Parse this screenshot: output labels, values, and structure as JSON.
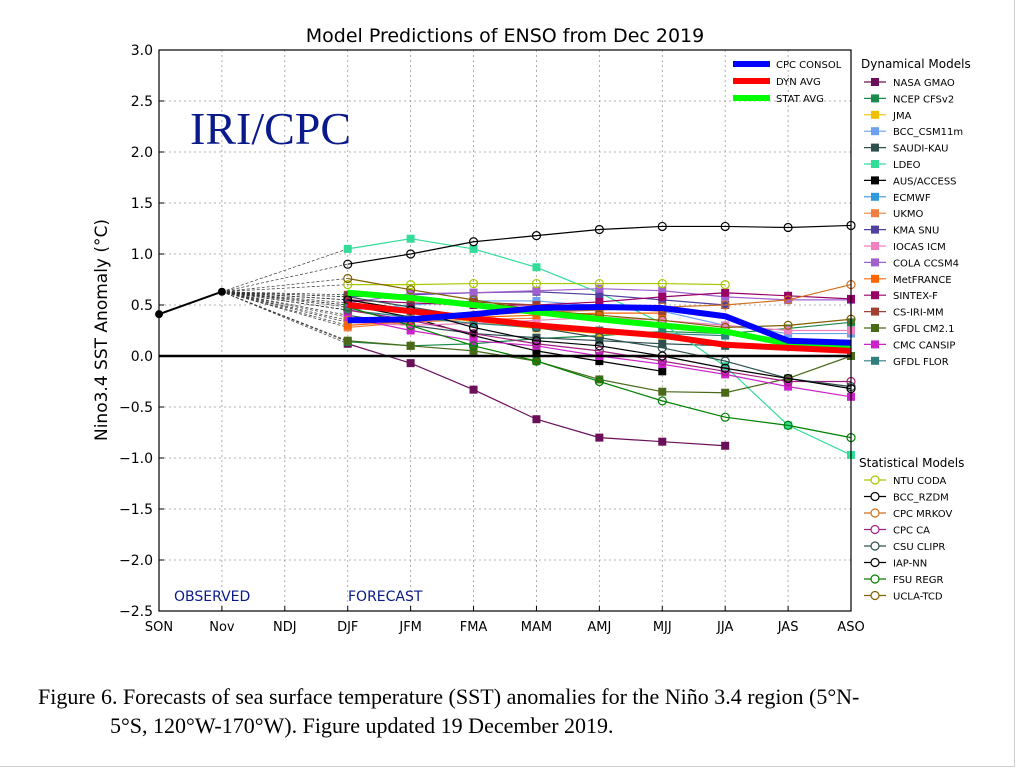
{
  "chart_data": {
    "type": "line",
    "title": "Model Predictions of ENSO from Dec 2019",
    "ylabel": "Nino3.4 SST Anomaly (°C)",
    "watermark": "IRI/CPC",
    "observed_label": "OBSERVED",
    "forecast_label": "FORECAST",
    "categories": [
      "SON",
      "Nov",
      "NDJ",
      "DJF",
      "JFM",
      "FMA",
      "MAM",
      "AMJ",
      "MJJ",
      "JJA",
      "JAS",
      "ASO"
    ],
    "ylim": [
      -2.5,
      3.0
    ],
    "yticks": [
      3.0,
      2.5,
      2.0,
      1.5,
      1.0,
      0.5,
      0.0,
      -0.5,
      -1.0,
      -1.5,
      -2.0,
      -2.5
    ],
    "ytick_labels": [
      "3.0",
      "2.5",
      "2.0",
      "1.5",
      "1.0",
      "0.5",
      "0.0",
      "−0.5",
      "−1.0",
      "−1.5",
      "−2.0",
      "−2.5"
    ],
    "grid": true,
    "observed": {
      "values": [
        0.41,
        0.63
      ]
    },
    "dynamical_legend_title": "Dynamical Models",
    "statistical_legend_title": "Statistical Models",
    "averages": [
      {
        "name": "CPC CONSOL",
        "color": "#0000ff",
        "values": [
          null,
          null,
          null,
          0.35,
          0.36,
          0.41,
          0.47,
          0.48,
          0.47,
          0.39,
          0.15,
          0.13
        ]
      },
      {
        "name": "DYN AVG",
        "color": "#ff0000",
        "values": [
          null,
          null,
          null,
          0.5,
          0.44,
          0.37,
          0.3,
          0.25,
          0.2,
          0.11,
          0.08,
          0.05
        ]
      },
      {
        "name": "STAT AVG",
        "color": "#00ff00",
        "values": [
          null,
          null,
          null,
          0.62,
          0.57,
          0.5,
          0.43,
          0.36,
          0.3,
          0.24,
          0.12,
          0.08
        ]
      }
    ],
    "dynamical": [
      {
        "name": "NASA GMAO",
        "color": "#6b0f5a",
        "values": [
          null,
          null,
          null,
          0.12,
          -0.07,
          -0.33,
          -0.62,
          -0.8,
          -0.84,
          -0.88,
          null,
          null
        ]
      },
      {
        "name": "NCEP CFSv2",
        "color": "#1b8a4a",
        "values": [
          null,
          null,
          null,
          0.14,
          0.1,
          0.12,
          0.17,
          0.2,
          0.24,
          0.22,
          0.27,
          0.33
        ]
      },
      {
        "name": "JMA",
        "color": "#f0c000",
        "values": [
          null,
          null,
          null,
          0.55,
          0.45,
          0.33,
          0.27,
          0.22,
          0.19,
          null,
          null,
          null
        ]
      },
      {
        "name": "BCC_CSM11m",
        "color": "#6ea0f0",
        "values": [
          null,
          null,
          null,
          0.45,
          0.5,
          0.54,
          0.54,
          0.49,
          0.44,
          0.3,
          0.22,
          0.22
        ]
      },
      {
        "name": "SAUDI-KAU",
        "color": "#2f4f4f",
        "values": [
          null,
          null,
          null,
          0.4,
          0.3,
          0.22,
          0.18,
          0.15,
          0.12,
          0.1,
          null,
          null
        ]
      },
      {
        "name": "LDEO",
        "color": "#33dd99",
        "values": [
          null,
          null,
          null,
          1.05,
          1.15,
          1.05,
          0.87,
          0.62,
          0.32,
          -0.1,
          -0.68,
          -0.97
        ]
      },
      {
        "name": "AUS/ACCESS",
        "color": "#000000",
        "values": [
          null,
          null,
          null,
          0.5,
          0.38,
          0.2,
          0.05,
          -0.05,
          -0.15,
          null,
          null,
          null
        ]
      },
      {
        "name": "ECMWF",
        "color": "#3399dd",
        "values": [
          null,
          null,
          null,
          0.5,
          0.45,
          0.35,
          0.3,
          null,
          null,
          null,
          null,
          null
        ]
      },
      {
        "name": "UKMO",
        "color": "#f08040",
        "values": [
          null,
          null,
          null,
          0.28,
          0.33,
          0.36,
          0.37,
          null,
          null,
          null,
          null,
          null
        ]
      },
      {
        "name": "KMA SNU",
        "color": "#5040a0",
        "values": [
          null,
          null,
          null,
          0.58,
          0.6,
          0.62,
          0.63,
          0.6,
          0.55,
          0.5,
          null,
          null
        ]
      },
      {
        "name": "IOCAS ICM",
        "color": "#f080c0",
        "values": [
          null,
          null,
          null,
          0.33,
          0.3,
          0.32,
          0.35,
          0.38,
          0.35,
          0.3,
          0.25,
          0.25
        ]
      },
      {
        "name": "COLA CCSM4",
        "color": "#a060d0",
        "values": [
          null,
          null,
          null,
          0.52,
          0.61,
          0.62,
          0.64,
          0.66,
          0.64,
          0.58,
          0.55,
          0.55
        ]
      },
      {
        "name": "MetFRANCE",
        "color": "#ff6600",
        "values": [
          null,
          null,
          null,
          0.3,
          0.34,
          0.38,
          0.4,
          0.42,
          0.42,
          null,
          null,
          null
        ]
      },
      {
        "name": "SINTEX-F",
        "color": "#990066",
        "values": [
          null,
          null,
          null,
          0.55,
          0.52,
          0.5,
          0.5,
          0.53,
          0.58,
          0.62,
          0.59,
          0.56
        ]
      },
      {
        "name": "CS-IRI-MM",
        "color": "#a04030",
        "values": [
          null,
          null,
          null,
          0.6,
          0.56,
          0.53,
          0.5,
          0.47,
          0.44,
          null,
          null,
          null
        ]
      },
      {
        "name": "GFDL CM2.1",
        "color": "#4a6a1a",
        "values": [
          null,
          null,
          null,
          0.15,
          0.1,
          0.05,
          -0.05,
          -0.23,
          -0.35,
          -0.36,
          -0.22,
          0.0
        ]
      },
      {
        "name": "CMC CANSIP",
        "color": "#cc22cc",
        "values": [
          null,
          null,
          null,
          0.38,
          0.25,
          0.15,
          0.1,
          0.0,
          -0.08,
          -0.18,
          -0.3,
          -0.4
        ]
      },
      {
        "name": "GFDL FLOR",
        "color": "#2f7f7f",
        "values": [
          null,
          null,
          null,
          0.45,
          0.38,
          0.32,
          0.28,
          0.25,
          0.22,
          0.2,
          null,
          null
        ]
      }
    ],
    "statistical": [
      {
        "name": "NTU CODA",
        "color": "#a8c800",
        "values": [
          null,
          null,
          null,
          0.7,
          0.7,
          0.71,
          0.71,
          0.71,
          0.71,
          0.7,
          null,
          null
        ]
      },
      {
        "name": "BCC_RZDM",
        "color": "#000000",
        "values": [
          null,
          null,
          null,
          0.9,
          1.0,
          1.12,
          1.18,
          1.24,
          1.27,
          1.27,
          1.26,
          1.28
        ]
      },
      {
        "name": "CPC MRKOV",
        "color": "#d07020",
        "values": [
          null,
          null,
          null,
          0.35,
          0.37,
          0.4,
          0.43,
          0.45,
          0.48,
          0.5,
          0.55,
          0.7
        ]
      },
      {
        "name": "CPC CA",
        "color": "#a02080",
        "values": [
          null,
          null,
          null,
          0.45,
          0.35,
          0.22,
          0.12,
          0.05,
          -0.05,
          -0.15,
          -0.25,
          -0.25
        ]
      },
      {
        "name": "CSU CLIPR",
        "color": "#2f4f4f",
        "values": [
          null,
          null,
          null,
          0.58,
          0.48,
          0.38,
          0.28,
          0.18,
          0.08,
          -0.05,
          -0.22,
          -0.3
        ]
      },
      {
        "name": "IAP-NN",
        "color": "#000000",
        "values": [
          null,
          null,
          null,
          0.55,
          0.45,
          0.28,
          0.15,
          0.1,
          0.0,
          -0.12,
          -0.22,
          -0.32
        ]
      },
      {
        "name": "FSU REGR",
        "color": "#008000",
        "values": [
          null,
          null,
          null,
          0.48,
          0.3,
          0.1,
          -0.05,
          -0.25,
          -0.44,
          -0.6,
          -0.68,
          -0.8
        ]
      },
      {
        "name": "UCLA-TCD",
        "color": "#806000",
        "values": [
          null,
          null,
          null,
          0.76,
          0.65,
          0.55,
          0.45,
          0.4,
          0.35,
          0.28,
          0.3,
          0.36
        ]
      }
    ]
  },
  "caption": {
    "line1": "Figure 6. Forecasts of sea surface temperature (SST) anomalies for the Niño 3.4 region (5°N-",
    "line2": "5°S, 120°W-170°W). Figure updated 19 December 2019."
  }
}
